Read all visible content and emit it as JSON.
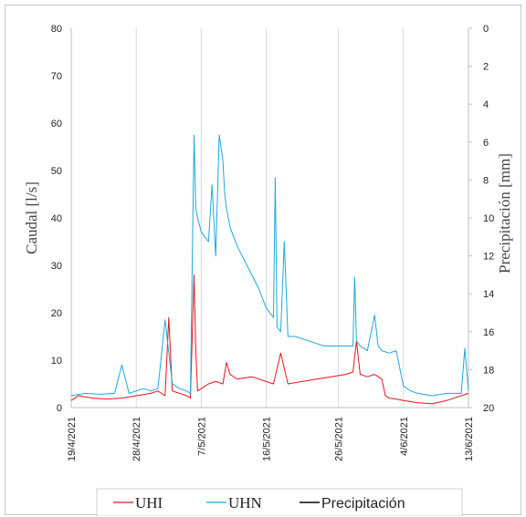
{
  "chart_data": {
    "type": "line",
    "title": "",
    "ylabel_left": "Caudal [l/s]",
    "ylabel_right": "Precipitación [mm]",
    "ylim_left": [
      0,
      80
    ],
    "yticks_left": [
      "0",
      "10",
      "20",
      "30",
      "40",
      "50",
      "60",
      "70",
      "80"
    ],
    "ylim_right_inverted": [
      0,
      20
    ],
    "yticks_right": [
      "0",
      "2",
      "4",
      "6",
      "8",
      "10",
      "12",
      "14",
      "16",
      "18",
      "20"
    ],
    "x_range": [
      "2021-04-19",
      "2021-06-13"
    ],
    "xtick_labels": [
      "19/4/2021",
      "28/4/2021",
      "7/5/2021",
      "16/5/2021",
      "26/5/2021",
      "4/6/2021",
      "13/6/2021"
    ],
    "grid": "vertical",
    "legend": "bottom",
    "series": [
      {
        "name": "UHI",
        "color": "#e8141b",
        "x": [
          "2021-04-19",
          "2021-04-20",
          "2021-04-22",
          "2021-04-24",
          "2021-04-26",
          "2021-04-28",
          "2021-04-30",
          "2021-05-01",
          "2021-05-02",
          "2021-05-02T12",
          "2021-05-03",
          "2021-05-04",
          "2021-05-05",
          "2021-05-05T12",
          "2021-05-06",
          "2021-05-06T06",
          "2021-05-06T12",
          "2021-05-07",
          "2021-05-08",
          "2021-05-09",
          "2021-05-10",
          "2021-05-10T12",
          "2021-05-11",
          "2021-05-12",
          "2021-05-14",
          "2021-05-16",
          "2021-05-17",
          "2021-05-18",
          "2021-05-19",
          "2021-05-21",
          "2021-05-23",
          "2021-05-25",
          "2021-05-27",
          "2021-05-28",
          "2021-05-28T12",
          "2021-05-29",
          "2021-05-30",
          "2021-05-31",
          "2021-06-01",
          "2021-06-01T12",
          "2021-06-02",
          "2021-06-03",
          "2021-06-04",
          "2021-06-06",
          "2021-06-08",
          "2021-06-10",
          "2021-06-12",
          "2021-06-13"
        ],
        "y": [
          1.5,
          2.5,
          2.0,
          1.8,
          2.0,
          2.5,
          3.0,
          3.5,
          2.5,
          19.0,
          3.5,
          3.0,
          2.5,
          2.0,
          28.0,
          12.0,
          3.5,
          4.0,
          5.0,
          5.5,
          5.0,
          9.5,
          7.0,
          6.0,
          6.5,
          5.5,
          5.0,
          11.5,
          5.0,
          5.5,
          6.0,
          6.5,
          7.0,
          7.5,
          14.0,
          7.0,
          6.5,
          7.0,
          6.0,
          2.5,
          2.0,
          1.8,
          1.5,
          1.0,
          0.8,
          1.5,
          2.5,
          3.0
        ]
      },
      {
        "name": "UHN",
        "color": "#1ba8e0",
        "x": [
          "2021-04-19",
          "2021-04-21",
          "2021-04-23",
          "2021-04-25",
          "2021-04-26",
          "2021-04-27",
          "2021-04-28",
          "2021-04-29",
          "2021-04-30",
          "2021-05-01",
          "2021-05-02",
          "2021-05-03",
          "2021-05-04",
          "2021-05-05",
          "2021-05-05T12",
          "2021-05-06",
          "2021-05-06T06",
          "2021-05-06T12",
          "2021-05-07",
          "2021-05-08",
          "2021-05-08T12",
          "2021-05-09",
          "2021-05-09T12",
          "2021-05-10",
          "2021-05-10T06",
          "2021-05-10T12",
          "2021-05-11",
          "2021-05-12",
          "2021-05-13",
          "2021-05-14",
          "2021-05-15",
          "2021-05-16",
          "2021-05-17",
          "2021-05-17T06",
          "2021-05-17T12",
          "2021-05-18",
          "2021-05-18T12",
          "2021-05-19",
          "2021-05-20",
          "2021-05-22",
          "2021-05-24",
          "2021-05-26",
          "2021-05-28",
          "2021-05-28T06",
          "2021-05-28T12",
          "2021-05-29",
          "2021-05-30",
          "2021-05-31",
          "2021-05-31T12",
          "2021-06-01",
          "2021-06-02",
          "2021-06-03",
          "2021-06-04",
          "2021-06-05",
          "2021-06-06",
          "2021-06-08",
          "2021-06-10",
          "2021-06-12",
          "2021-06-12T12",
          "2021-06-13"
        ],
        "y": [
          2.5,
          3.0,
          2.8,
          3.0,
          9.0,
          3.0,
          3.5,
          4.0,
          3.5,
          4.0,
          18.5,
          5.0,
          4.0,
          3.5,
          3.0,
          57.5,
          42.0,
          40.0,
          37.0,
          35.0,
          47.0,
          32.0,
          57.5,
          52.0,
          45.0,
          42.0,
          38.0,
          34.0,
          31.0,
          28.0,
          25.0,
          21.0,
          19.0,
          48.5,
          17.0,
          16.0,
          35.0,
          15.0,
          15.0,
          14.0,
          13.0,
          13.0,
          13.0,
          27.5,
          14.0,
          13.0,
          12.0,
          19.5,
          13.0,
          12.0,
          11.5,
          12.0,
          4.5,
          3.5,
          3.0,
          2.5,
          3.0,
          3.0,
          12.5,
          3.5
        ]
      }
    ],
    "precipitation": {
      "name": "Precipitación",
      "color": "#333333",
      "values": []
    }
  },
  "legend": {
    "items": [
      {
        "label": "UHI",
        "color": "#e8141b"
      },
      {
        "label": "UHN",
        "color": "#1ba8e0"
      },
      {
        "label": "Precipitación",
        "color": "#444444"
      }
    ]
  }
}
